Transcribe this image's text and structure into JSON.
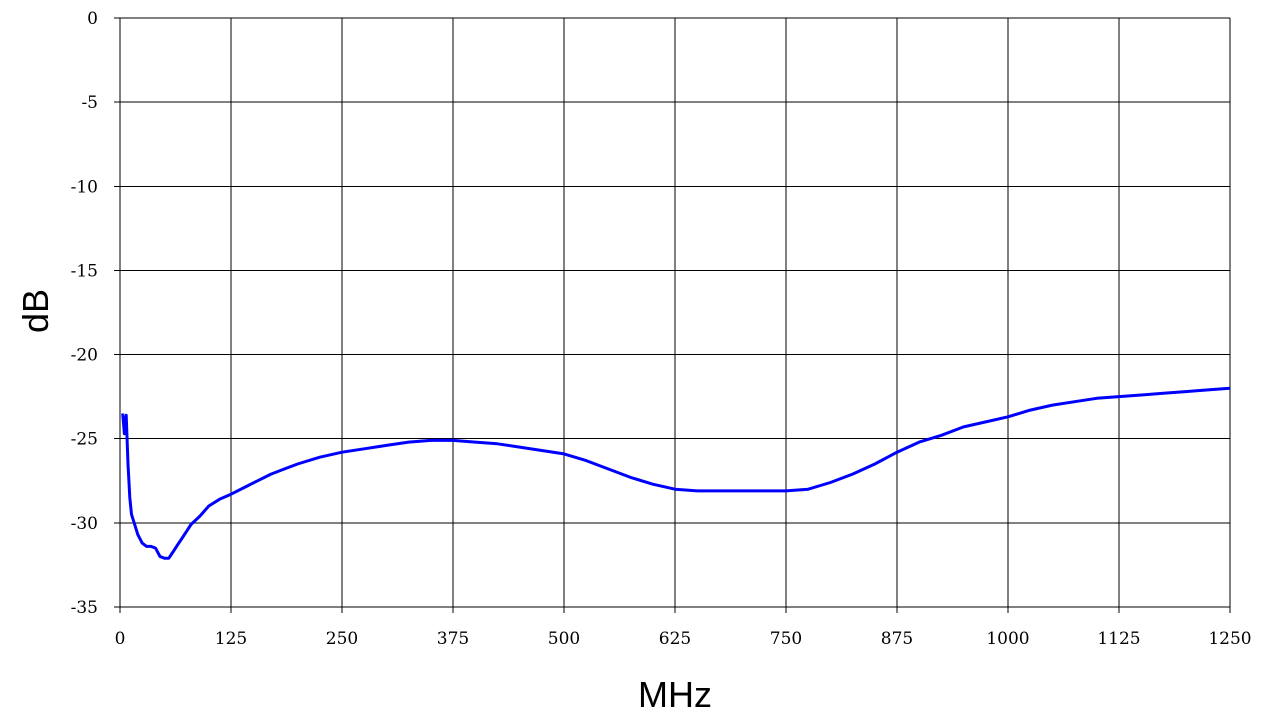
{
  "chart_data": {
    "type": "line",
    "title": "",
    "xlabel": "MHz",
    "ylabel": "dB",
    "xlim": [
      0,
      1250
    ],
    "ylim": [
      -35,
      0
    ],
    "xticks": [
      0,
      125,
      250,
      375,
      500,
      625,
      750,
      875,
      1000,
      1125,
      1250
    ],
    "yticks": [
      0,
      -5,
      -10,
      -15,
      -20,
      -25,
      -30,
      -35
    ],
    "grid": true,
    "line_color": "#0000ff",
    "grid_color": "#000000",
    "series": [
      {
        "x": [
          3,
          5,
          7,
          9,
          11,
          13,
          16,
          20,
          25,
          30,
          35,
          40,
          45,
          50,
          55,
          60,
          65,
          70,
          75,
          80,
          90,
          100,
          112,
          125,
          140,
          155,
          170,
          185,
          200,
          225,
          250,
          275,
          300,
          325,
          350,
          375,
          400,
          425,
          450,
          475,
          500,
          525,
          550,
          575,
          600,
          625,
          650,
          675,
          700,
          725,
          750,
          775,
          800,
          825,
          850,
          875,
          900,
          925,
          950,
          975,
          1000,
          1025,
          1050,
          1075,
          1100,
          1125,
          1150,
          1175,
          1200,
          1225,
          1250
        ],
        "y": [
          -23.5,
          -24.7,
          -23.6,
          -26.5,
          -28.5,
          -29.5,
          -30.0,
          -30.7,
          -31.2,
          -31.4,
          -31.4,
          -31.5,
          -32.0,
          -32.1,
          -32.1,
          -31.7,
          -31.3,
          -30.9,
          -30.5,
          -30.1,
          -29.6,
          -29.0,
          -28.6,
          -28.3,
          -27.9,
          -27.5,
          -27.1,
          -26.8,
          -26.5,
          -26.1,
          -25.8,
          -25.6,
          -25.4,
          -25.2,
          -25.1,
          -25.1,
          -25.2,
          -25.3,
          -25.5,
          -25.7,
          -25.9,
          -26.3,
          -26.8,
          -27.3,
          -27.7,
          -28.0,
          -28.1,
          -28.1,
          -28.1,
          -28.1,
          -28.1,
          -28.0,
          -27.6,
          -27.1,
          -26.5,
          -25.8,
          -25.2,
          -24.8,
          -24.3,
          -24.0,
          -23.7,
          -23.3,
          -23.0,
          -22.8,
          -22.6,
          -22.5,
          -22.4,
          -22.3,
          -22.2,
          -22.1,
          -22.0
        ]
      }
    ]
  }
}
